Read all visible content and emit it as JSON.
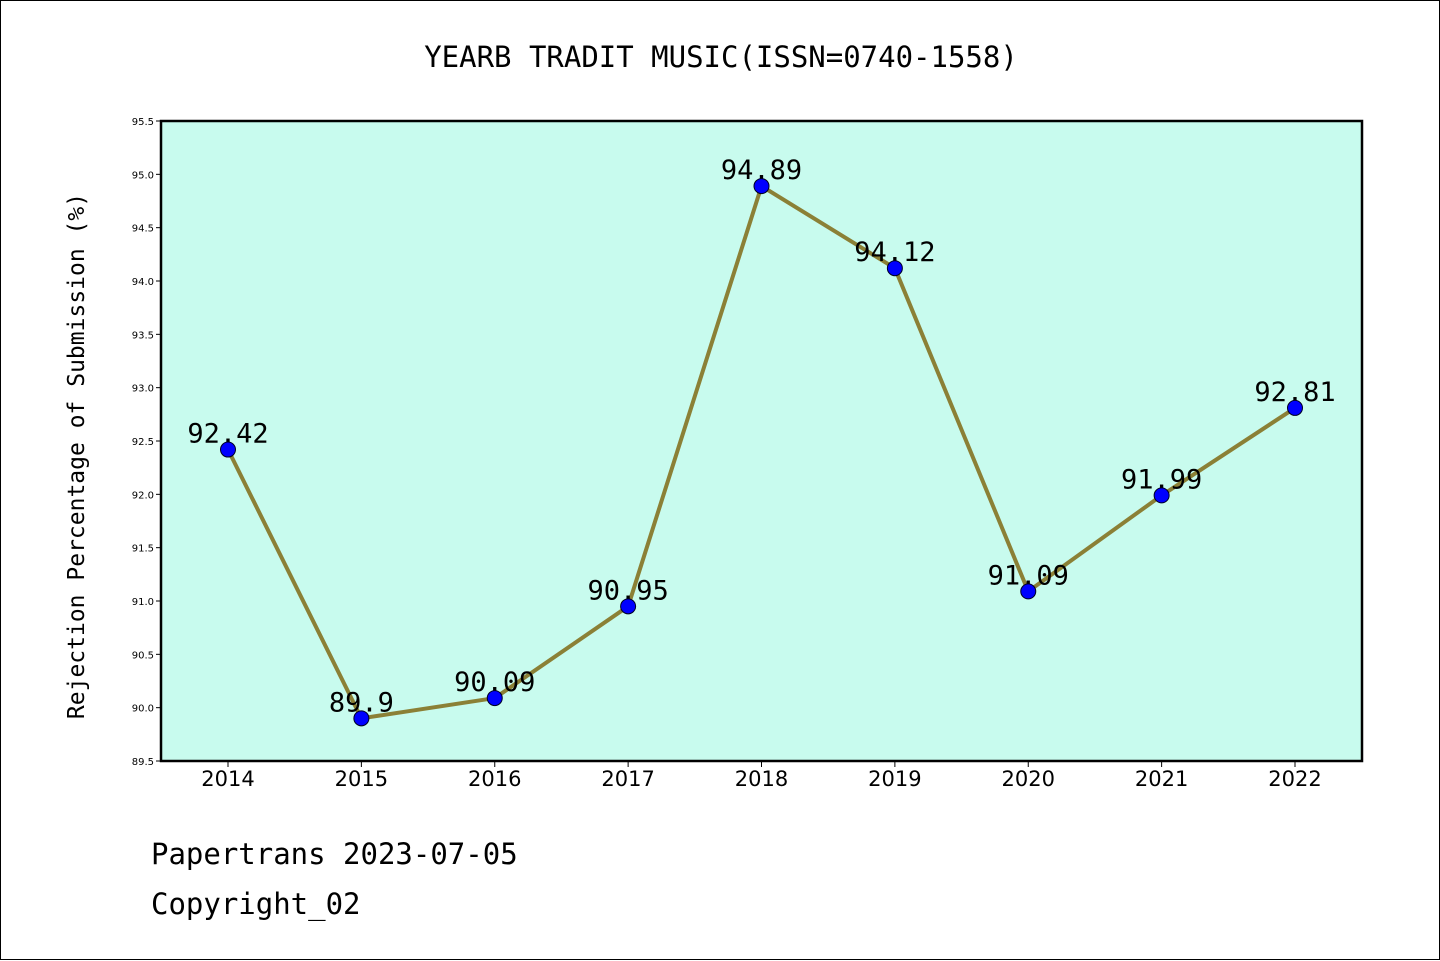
{
  "chart_data": {
    "type": "line",
    "title": "YEARB TRADIT MUSIC(ISSN=0740-1558)",
    "xlabel": "",
    "ylabel": "Rejection Percentage of Submission (%)",
    "categories": [
      "2014",
      "2015",
      "2016",
      "2017",
      "2018",
      "2019",
      "2020",
      "2021",
      "2022"
    ],
    "series": [
      {
        "values": [
          92.42,
          89.9,
          90.09,
          90.95,
          94.89,
          94.12,
          91.09,
          91.99,
          92.81
        ],
        "labels": [
          "92.42",
          "89.9",
          "90.09",
          "90.95",
          "94.89",
          "94.12",
          "91.09",
          "91.99",
          "92.81"
        ]
      }
    ],
    "ylim": [
      89.5,
      95.5
    ],
    "yticks": [
      "89.5",
      "90.0",
      "90.5",
      "91.0",
      "91.5",
      "92.0",
      "92.5",
      "93.0",
      "93.5",
      "94.0",
      "94.5",
      "95.0",
      "95.5"
    ],
    "grid": false,
    "legend": "none",
    "colors": {
      "plot_background": "#c8fbee",
      "line": "#8b8036",
      "marker": "#0000ff",
      "axes": "#000000"
    }
  },
  "footer": {
    "line1": "Papertrans 2023-07-05",
    "line2": "Copyright_02"
  }
}
